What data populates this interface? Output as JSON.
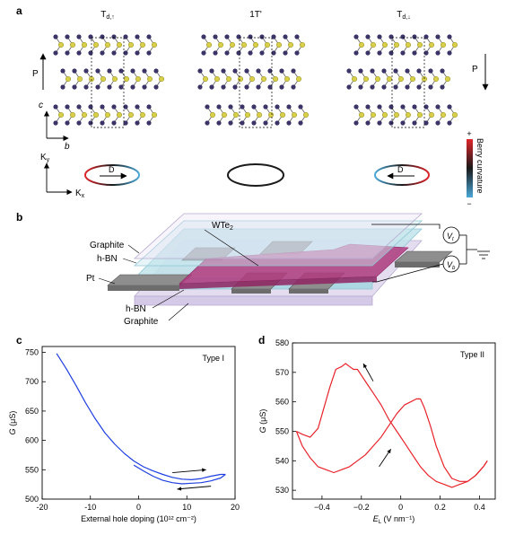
{
  "panels": {
    "a": {
      "label": "a",
      "structures": [
        {
          "title_main": "T",
          "title_sub": "d,↑"
        },
        {
          "title_main": "1T'",
          "title_sub": ""
        },
        {
          "title_main": "T",
          "title_sub": "d,↓"
        }
      ],
      "polarization_label": "P",
      "axis_c": "c",
      "axis_b": "b",
      "kx_main": "K",
      "kx_sub": "x",
      "ky_main": "K",
      "ky_sub": "y",
      "dipole_label": "D",
      "colorbar": {
        "title": "Berry curvature",
        "plus": "+",
        "minus": "−",
        "colors": [
          "#e0252b",
          "#1a1a1a",
          "#4aa8d8"
        ]
      }
    },
    "b": {
      "label": "b",
      "labels": {
        "wte2_main": "WTe",
        "wte2_sub": "2",
        "graphite_top": "Graphite",
        "hbn_top": "h-BN",
        "pt": "Pt",
        "hbn_bottom": "h-BN",
        "graphite_bottom": "Graphite",
        "vt_main": "V",
        "vt_sub": "t",
        "vb_main": "V",
        "vb_sub": "b"
      }
    },
    "c": {
      "label": "c"
    },
    "d": {
      "label": "d"
    }
  },
  "chart_data": [
    {
      "type": "line",
      "panel": "c",
      "annotation": "Type I",
      "xlabel": "External hole doping (10¹² cm⁻²)",
      "ylabel_main": "G",
      "ylabel_unit": " (μS)",
      "xlim": [
        -20,
        20
      ],
      "ylim": [
        500,
        760
      ],
      "xticks": [
        -20,
        -10,
        0,
        10,
        20
      ],
      "yticks": [
        500,
        550,
        600,
        650,
        700,
        750
      ],
      "color": "#1f3fe0",
      "series": [
        {
          "x": [
            -17,
            -15,
            -13,
            -11,
            -9,
            -7,
            -5,
            -3,
            -1,
            1,
            3,
            5,
            7,
            9,
            11,
            13,
            15,
            17,
            18
          ],
          "y": [
            748,
            722,
            694,
            664,
            637,
            613,
            594,
            578,
            565,
            555,
            548,
            542,
            537,
            534,
            533,
            535,
            539,
            542,
            542
          ]
        },
        {
          "x": [
            18,
            17,
            15,
            13,
            11,
            9,
            7,
            5,
            3,
            1,
            -1
          ],
          "y": [
            542,
            536,
            531,
            528,
            527,
            526,
            528,
            532,
            539,
            548,
            558
          ]
        }
      ],
      "arrows": [
        {
          "x0": 7,
          "y0": 545,
          "x1": 14,
          "y1": 550
        },
        {
          "x0": 15,
          "y0": 522,
          "x1": 8,
          "y1": 517
        }
      ]
    },
    {
      "type": "line",
      "panel": "d",
      "annotation": "Type II",
      "xlabel_main": "E",
      "xlabel_sub": "L",
      "xlabel_unit": " (V nm⁻¹)",
      "ylabel_main": "G",
      "ylabel_unit": " (μS)",
      "xlim": [
        -0.55,
        0.48
      ],
      "ylim": [
        527,
        580
      ],
      "xticks": [
        -0.4,
        -0.2,
        0,
        0.2,
        0.4
      ],
      "xtick_labels": [
        "−0.4",
        "−0.2",
        "0",
        "0.2",
        "0.4"
      ],
      "yticks": [
        530,
        540,
        550,
        560,
        570,
        580
      ],
      "color": "#e8232a",
      "series": [
        {
          "x": [
            -0.53,
            -0.5,
            -0.46,
            -0.42,
            -0.39,
            -0.36,
            -0.33,
            -0.3,
            -0.28,
            -0.26,
            -0.24,
            -0.22,
            -0.2,
            -0.17,
            -0.14,
            -0.1,
            -0.06,
            -0.02,
            0.02,
            0.06,
            0.1,
            0.14,
            0.18,
            0.22,
            0.26,
            0.3,
            0.34,
            0.38,
            0.42,
            0.44
          ],
          "y": [
            550,
            549,
            548,
            551,
            558,
            565,
            571,
            572,
            573,
            572,
            571,
            571,
            569,
            566,
            563,
            559,
            554,
            550,
            546,
            542,
            538,
            535,
            533,
            532,
            531,
            532,
            533,
            535,
            538,
            540
          ]
        },
        {
          "x": [
            -0.53,
            -0.5,
            -0.46,
            -0.42,
            -0.38,
            -0.34,
            -0.3,
            -0.26,
            -0.22,
            -0.18,
            -0.14,
            -0.1,
            -0.06,
            -0.02,
            0.02,
            0.05,
            0.08,
            0.1,
            0.12,
            0.15,
            0.18,
            0.22,
            0.26,
            0.3,
            0.34,
            0.38,
            0.42,
            0.44
          ],
          "y": [
            550,
            545,
            541,
            538,
            537,
            536,
            537,
            538,
            540,
            542,
            545,
            548,
            552,
            556,
            559,
            560,
            561,
            561,
            558,
            552,
            545,
            538,
            534,
            533,
            533,
            535,
            538,
            540
          ]
        }
      ],
      "arrows": [
        {
          "x0": -0.14,
          "y0": 567,
          "x1": -0.19,
          "y1": 573
        },
        {
          "x0": -0.11,
          "y0": 538,
          "x1": -0.05,
          "y1": 544
        }
      ]
    }
  ]
}
